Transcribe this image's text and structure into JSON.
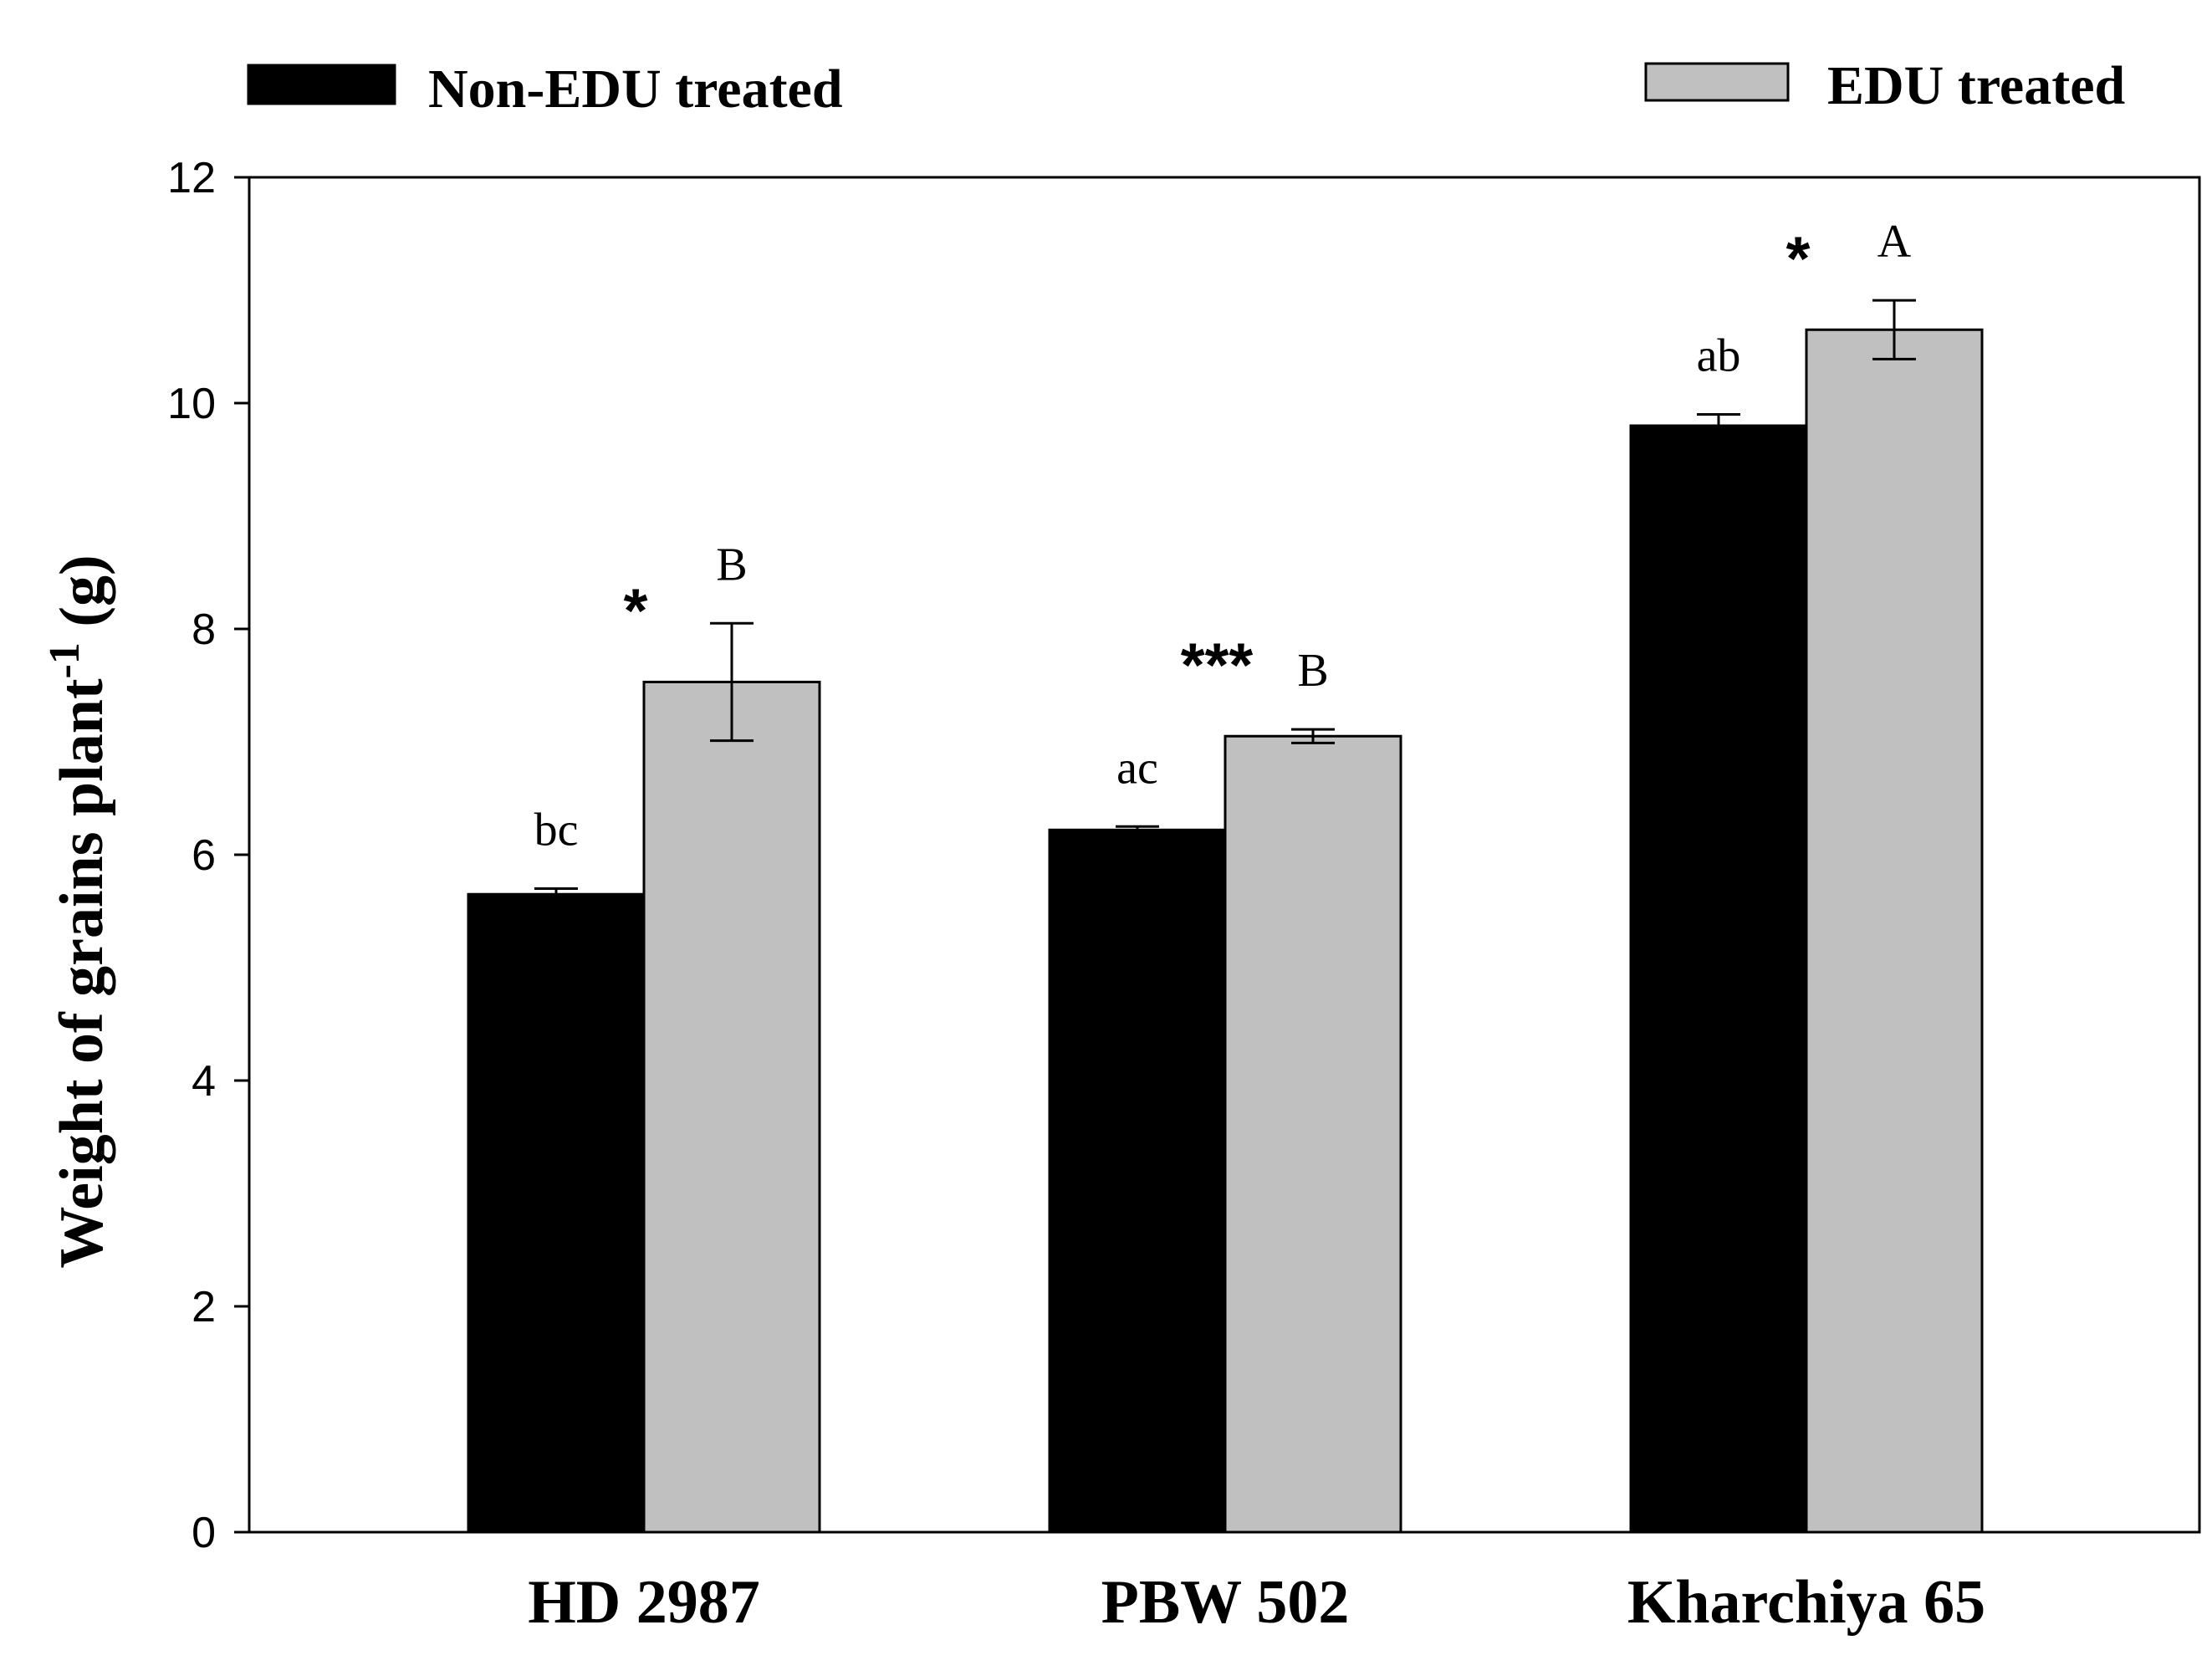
{
  "chart_data": {
    "type": "bar",
    "categories": [
      "HD 2987",
      "PBW 502",
      "Kharchiya 65"
    ],
    "series": [
      {
        "name": "Non-EDU treated",
        "color": "#000000",
        "values": [
          5.65,
          6.22,
          9.8
        ],
        "errors": [
          0.05,
          0.03,
          0.1
        ],
        "letters": [
          "bc",
          "ac",
          "ab"
        ]
      },
      {
        "name": "EDU treated",
        "color": "#c0c0c0",
        "values": [
          7.53,
          7.05,
          10.65
        ],
        "errors": [
          0.52,
          0.06,
          0.26
        ],
        "letters": [
          "B",
          "B",
          "A"
        ]
      }
    ],
    "significance": [
      "*",
      "***",
      "*"
    ],
    "ylabel": {
      "main": "Weight of grains plant",
      "sup": "-1",
      "unit": " (g)"
    },
    "xlabel": "",
    "ylim": [
      0,
      12
    ],
    "yticks": [
      0,
      2,
      4,
      6,
      8,
      10,
      12
    ],
    "legend": "top",
    "grid": false
  }
}
